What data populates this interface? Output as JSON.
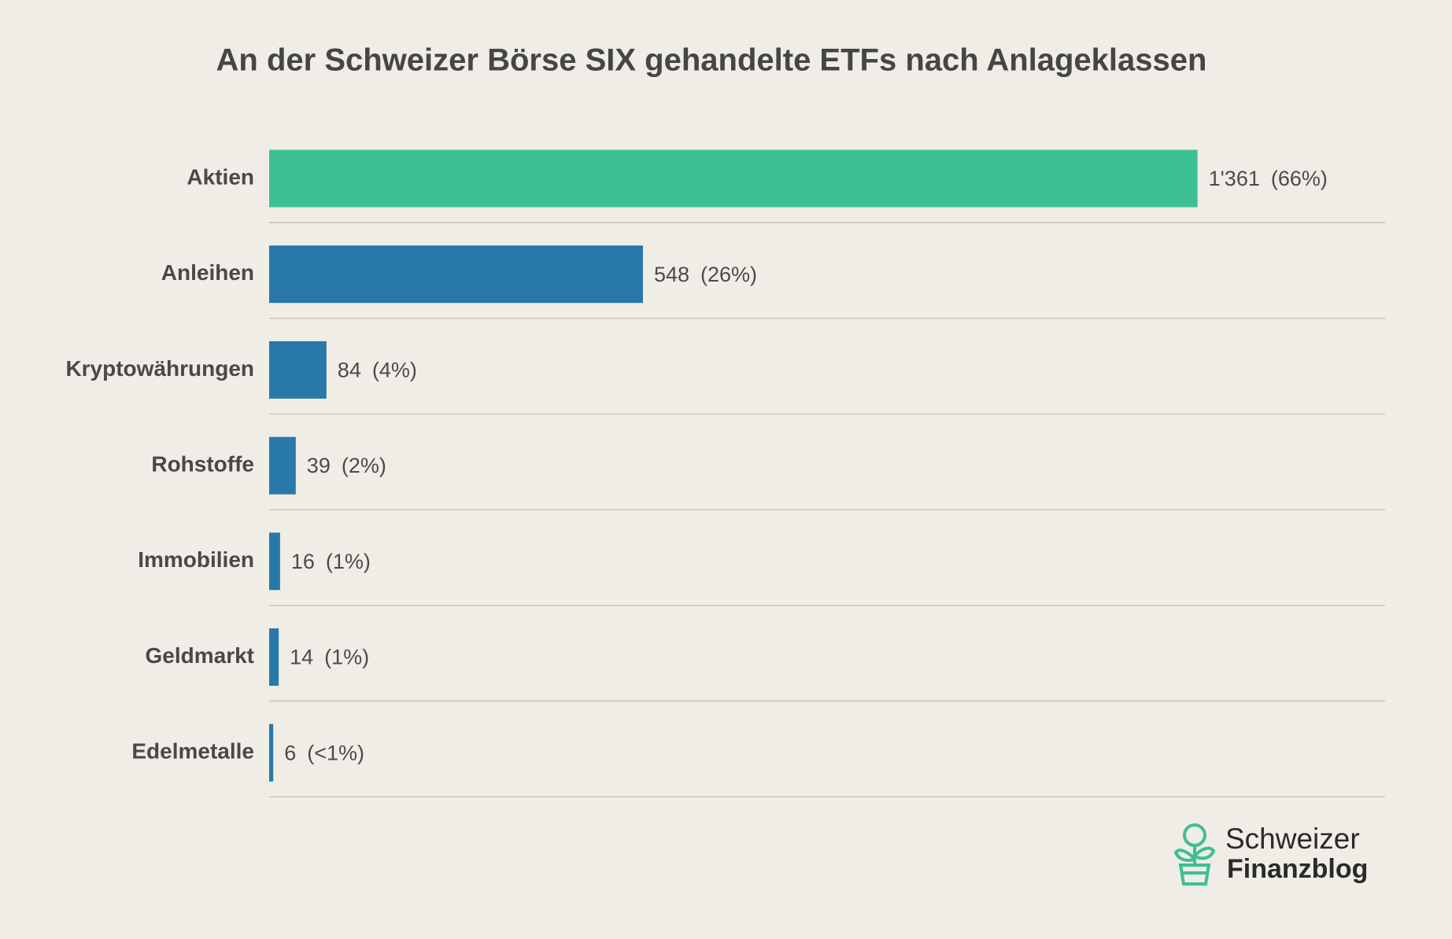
{
  "chart_data": {
    "type": "barh",
    "title": "An der Schweizer Börse SIX gehandelte ETFs nach Anlageklassen",
    "categories": [
      "Aktien",
      "Anleihen",
      "Kryptowährungen",
      "Rohstoffe",
      "Immobilien",
      "Geldmarkt",
      "Edelmetalle"
    ],
    "values": [
      1361,
      548,
      84,
      39,
      16,
      14,
      6
    ],
    "value_labels": [
      "1'361",
      "548",
      "84",
      "39",
      "16",
      "14",
      "6"
    ],
    "share_labels": [
      "(66%)",
      "(26%)",
      "(4%)",
      "(2%)",
      "(1%)",
      "(1%)",
      "(<1%)"
    ],
    "colors": [
      "#3dbf94",
      "#2878a8",
      "#2878a8",
      "#2878a8",
      "#2878a8",
      "#2878a8",
      "#2878a8"
    ],
    "xlim": [
      0,
      1636
    ]
  },
  "logo": {
    "line1": "Schweizer",
    "line2": "Finanzblog"
  }
}
